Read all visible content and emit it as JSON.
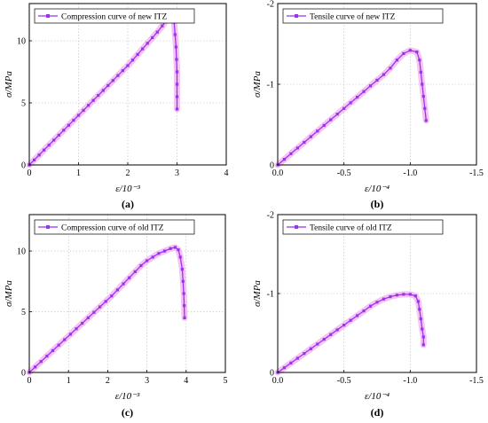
{
  "colors": {
    "series": "#9933ee",
    "halo": "#f4c4f4",
    "axis": "#000000",
    "grid": "#bbbbbb"
  },
  "chart_data": [
    {
      "panel_label": "(a)",
      "type": "line",
      "xlabel": "ε/10⁻³",
      "ylabel": "σ/MPa",
      "xlim": [
        0,
        4
      ],
      "ylim": [
        0,
        13
      ],
      "xticks": [
        "0",
        "1",
        "2",
        "3",
        "4"
      ],
      "yticks": [
        "0",
        "5",
        "10"
      ],
      "legend_position": "top-left",
      "grid": true,
      "series": [
        {
          "name": "Compression curve of new ITZ",
          "points": [
            [
              0,
              0
            ],
            [
              0.1,
              0.4
            ],
            [
              0.2,
              0.8
            ],
            [
              0.3,
              1.2
            ],
            [
              0.4,
              1.6
            ],
            [
              0.5,
              2.0
            ],
            [
              0.6,
              2.4
            ],
            [
              0.7,
              2.8
            ],
            [
              0.8,
              3.2
            ],
            [
              0.9,
              3.6
            ],
            [
              1.0,
              4.0
            ],
            [
              1.1,
              4.4
            ],
            [
              1.2,
              4.8
            ],
            [
              1.3,
              5.2
            ],
            [
              1.4,
              5.6
            ],
            [
              1.5,
              6.0
            ],
            [
              1.6,
              6.4
            ],
            [
              1.7,
              6.8
            ],
            [
              1.8,
              7.2
            ],
            [
              1.9,
              7.6
            ],
            [
              2.0,
              8.0
            ],
            [
              2.1,
              8.45
            ],
            [
              2.2,
              8.9
            ],
            [
              2.3,
              9.35
            ],
            [
              2.4,
              9.8
            ],
            [
              2.5,
              10.25
            ],
            [
              2.6,
              10.7
            ],
            [
              2.7,
              11.2
            ],
            [
              2.8,
              11.7
            ],
            [
              2.85,
              11.9
            ],
            [
              2.9,
              12.0
            ],
            [
              2.94,
              11.5
            ],
            [
              2.96,
              10.5
            ],
            [
              2.98,
              9.5
            ],
            [
              2.99,
              8.5
            ],
            [
              3.0,
              7.5
            ],
            [
              3.0,
              6.5
            ],
            [
              3.0,
              5.5
            ],
            [
              3.0,
              4.5
            ]
          ]
        }
      ]
    },
    {
      "panel_label": "(b)",
      "type": "line",
      "xlabel": "ε/10⁻⁴",
      "ylabel": "σ/MPa",
      "xlim": [
        0,
        -1.5
      ],
      "ylim": [
        0,
        -2
      ],
      "xticks": [
        "0.0",
        "-0.5",
        "-1.0",
        "-1.5"
      ],
      "yticks": [
        "0",
        "-1",
        "-2"
      ],
      "legend_position": "top-left",
      "grid": true,
      "series": [
        {
          "name": "Tensile curve of new ITZ",
          "points": [
            [
              0,
              0
            ],
            [
              -0.05,
              -0.07
            ],
            [
              -0.1,
              -0.14
            ],
            [
              -0.15,
              -0.21
            ],
            [
              -0.2,
              -0.28
            ],
            [
              -0.25,
              -0.35
            ],
            [
              -0.3,
              -0.42
            ],
            [
              -0.35,
              -0.49
            ],
            [
              -0.4,
              -0.56
            ],
            [
              -0.45,
              -0.63
            ],
            [
              -0.5,
              -0.7
            ],
            [
              -0.55,
              -0.77
            ],
            [
              -0.6,
              -0.84
            ],
            [
              -0.65,
              -0.91
            ],
            [
              -0.7,
              -0.98
            ],
            [
              -0.75,
              -1.05
            ],
            [
              -0.8,
              -1.12
            ],
            [
              -0.85,
              -1.2
            ],
            [
              -0.9,
              -1.3
            ],
            [
              -0.95,
              -1.38
            ],
            [
              -1.0,
              -1.42
            ],
            [
              -1.05,
              -1.4
            ],
            [
              -1.07,
              -1.3
            ],
            [
              -1.08,
              -1.15
            ],
            [
              -1.09,
              -1.0
            ],
            [
              -1.1,
              -0.85
            ],
            [
              -1.11,
              -0.7
            ],
            [
              -1.12,
              -0.55
            ]
          ]
        }
      ]
    },
    {
      "panel_label": "(c)",
      "type": "line",
      "xlabel": "ε/10⁻³",
      "ylabel": "σ/MPa",
      "xlim": [
        0,
        5
      ],
      "ylim": [
        0,
        13
      ],
      "xticks": [
        "0",
        "1",
        "2",
        "3",
        "4",
        "5"
      ],
      "yticks": [
        "0",
        "5",
        "10"
      ],
      "legend_position": "top-left",
      "grid": true,
      "series": [
        {
          "name": "Compression curve of old ITZ",
          "points": [
            [
              0,
              0
            ],
            [
              0.15,
              0.45
            ],
            [
              0.3,
              0.9
            ],
            [
              0.45,
              1.35
            ],
            [
              0.6,
              1.8
            ],
            [
              0.75,
              2.25
            ],
            [
              0.9,
              2.7
            ],
            [
              1.05,
              3.15
            ],
            [
              1.2,
              3.6
            ],
            [
              1.35,
              4.05
            ],
            [
              1.5,
              4.5
            ],
            [
              1.65,
              4.95
            ],
            [
              1.8,
              5.4
            ],
            [
              1.95,
              5.85
            ],
            [
              2.1,
              6.3
            ],
            [
              2.25,
              6.8
            ],
            [
              2.4,
              7.3
            ],
            [
              2.55,
              7.8
            ],
            [
              2.7,
              8.3
            ],
            [
              2.85,
              8.8
            ],
            [
              3.0,
              9.2
            ],
            [
              3.15,
              9.5
            ],
            [
              3.3,
              9.8
            ],
            [
              3.45,
              10.0
            ],
            [
              3.6,
              10.2
            ],
            [
              3.72,
              10.3
            ],
            [
              3.8,
              10.1
            ],
            [
              3.85,
              9.5
            ],
            [
              3.9,
              8.5
            ],
            [
              3.92,
              7.5
            ],
            [
              3.94,
              6.5
            ],
            [
              3.95,
              5.5
            ],
            [
              3.96,
              4.5
            ]
          ]
        }
      ]
    },
    {
      "panel_label": "(d)",
      "type": "line",
      "xlabel": "ε/10⁻⁴",
      "ylabel": "σ/MPa",
      "xlim": [
        0,
        -1.5
      ],
      "ylim": [
        0,
        -2
      ],
      "xticks": [
        "0.0",
        "-0.5",
        "-1.0",
        "-1.5"
      ],
      "yticks": [
        "0",
        "-1",
        "-2"
      ],
      "legend_position": "top-left",
      "grid": true,
      "series": [
        {
          "name": "Tensile curve of old ITZ",
          "points": [
            [
              0,
              0
            ],
            [
              -0.05,
              -0.06
            ],
            [
              -0.1,
              -0.12
            ],
            [
              -0.15,
              -0.18
            ],
            [
              -0.2,
              -0.24
            ],
            [
              -0.25,
              -0.3
            ],
            [
              -0.3,
              -0.36
            ],
            [
              -0.35,
              -0.42
            ],
            [
              -0.4,
              -0.48
            ],
            [
              -0.45,
              -0.54
            ],
            [
              -0.5,
              -0.6
            ],
            [
              -0.55,
              -0.66
            ],
            [
              -0.6,
              -0.72
            ],
            [
              -0.65,
              -0.78
            ],
            [
              -0.7,
              -0.84
            ],
            [
              -0.75,
              -0.89
            ],
            [
              -0.8,
              -0.93
            ],
            [
              -0.85,
              -0.96
            ],
            [
              -0.9,
              -0.98
            ],
            [
              -0.95,
              -0.99
            ],
            [
              -1.0,
              -0.99
            ],
            [
              -1.04,
              -0.97
            ],
            [
              -1.06,
              -0.9
            ],
            [
              -1.07,
              -0.8
            ],
            [
              -1.08,
              -0.68
            ],
            [
              -1.09,
              -0.55
            ],
            [
              -1.1,
              -0.45
            ],
            [
              -1.1,
              -0.35
            ]
          ]
        }
      ]
    }
  ]
}
